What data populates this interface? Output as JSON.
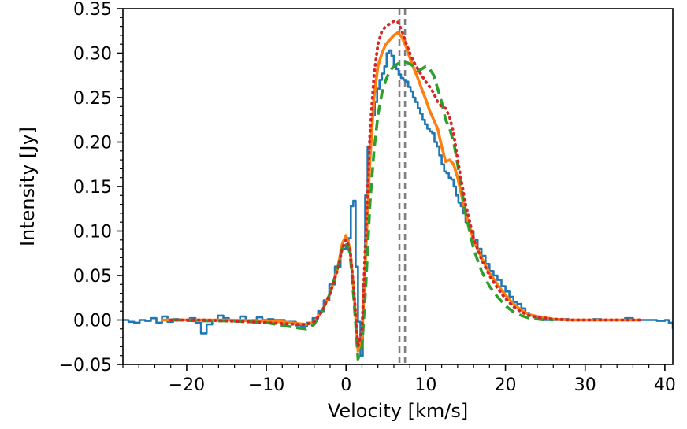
{
  "chart_data": {
    "type": "line",
    "xlabel": "Velocity [km/s]",
    "ylabel": "Intensity [Jy]",
    "xlim": [
      -28,
      41
    ],
    "ylim": [
      -0.05,
      0.35
    ],
    "xticks": [
      -20,
      -10,
      0,
      10,
      20,
      30,
      40
    ],
    "xtick_labels": [
      "−20",
      "−10",
      "0",
      "10",
      "20",
      "30",
      "40"
    ],
    "yticks": [
      -0.05,
      0.0,
      0.05,
      0.1,
      0.15,
      0.2,
      0.25,
      0.3,
      0.35
    ],
    "ytick_labels": [
      "−0.05",
      "0.00",
      "0.05",
      "0.10",
      "0.15",
      "0.20",
      "0.25",
      "0.30",
      "0.35"
    ],
    "grid": false,
    "vlines": [
      {
        "x": 6.7,
        "color": "#7f7f7f",
        "style": "dashed"
      },
      {
        "x": 7.4,
        "color": "#7f7f7f",
        "style": "dashed"
      }
    ],
    "series": [
      {
        "color": "#1f77b4",
        "style": "step",
        "x": [
          -28,
          -27.3,
          -26.6,
          -25.9,
          -25.2,
          -24.5,
          -23.8,
          -23.1,
          -22.4,
          -21.7,
          -21,
          -20.3,
          -19.6,
          -18.9,
          -18.2,
          -17.5,
          -16.8,
          -16.1,
          -15.4,
          -14.7,
          -14,
          -13.3,
          -12.6,
          -11.9,
          -11.2,
          -10.5,
          -9.8,
          -9.1,
          -8.4,
          -7.7,
          -7,
          -6.3,
          -5.6,
          -4.9,
          -4.2,
          -3.5,
          -2.8,
          -2.1,
          -1.4,
          -0.7,
          0,
          0.3,
          0.6,
          0.9,
          1.2,
          1.5,
          1.8,
          2.1,
          2.4,
          2.7,
          3.0,
          3.3,
          3.6,
          3.9,
          4.2,
          4.5,
          4.8,
          5.1,
          5.4,
          5.7,
          6.0,
          6.3,
          6.6,
          6.9,
          7.2,
          7.5,
          7.8,
          8.1,
          8.4,
          8.7,
          9.0,
          9.3,
          9.6,
          9.9,
          10.2,
          10.5,
          10.8,
          11.1,
          11.4,
          11.7,
          12.0,
          12.3,
          12.6,
          12.9,
          13.2,
          13.5,
          13.8,
          14.1,
          14.4,
          14.7,
          15.0,
          15.5,
          16,
          16.5,
          17,
          17.5,
          18,
          18.5,
          19,
          19.5,
          20,
          20.5,
          21,
          21.5,
          22,
          22.5,
          23,
          23.5,
          24,
          25,
          26,
          27,
          28,
          29,
          30,
          31,
          32,
          33,
          34,
          35,
          36,
          37,
          38,
          39,
          40,
          40.5,
          41
        ],
        "y": [
          0.0,
          -0.002,
          -0.003,
          0.0,
          -0.001,
          0.002,
          -0.003,
          0.004,
          -0.002,
          0.001,
          0.0,
          0.0,
          0.002,
          -0.003,
          -0.015,
          -0.005,
          0.0,
          0.005,
          0.002,
          0.0,
          0.0,
          0.004,
          -0.001,
          0.0,
          0.003,
          0.0,
          0.001,
          0.0,
          0.0,
          -0.002,
          -0.002,
          -0.006,
          -0.007,
          -0.003,
          0.002,
          0.01,
          0.022,
          0.04,
          0.06,
          0.08,
          0.085,
          0.092,
          0.128,
          0.134,
          0.06,
          -0.002,
          -0.04,
          0.04,
          0.14,
          0.195,
          0.205,
          0.23,
          0.245,
          0.26,
          0.27,
          0.277,
          0.285,
          0.3,
          0.303,
          0.297,
          0.287,
          0.282,
          0.276,
          0.272,
          0.27,
          0.268,
          0.262,
          0.257,
          0.25,
          0.245,
          0.238,
          0.232,
          0.225,
          0.22,
          0.215,
          0.212,
          0.21,
          0.2,
          0.195,
          0.185,
          0.175,
          0.167,
          0.165,
          0.16,
          0.158,
          0.15,
          0.14,
          0.132,
          0.128,
          0.12,
          0.11,
          0.1,
          0.09,
          0.08,
          0.072,
          0.063,
          0.055,
          0.05,
          0.045,
          0.038,
          0.032,
          0.026,
          0.02,
          0.018,
          0.013,
          0.008,
          0.005,
          0.003,
          0.001,
          0.0,
          0.0,
          0.001,
          0.0,
          0.0,
          0.0,
          0.001,
          0.0,
          0.0,
          0.0,
          0.002,
          0.0,
          0.0,
          0.0,
          -0.001,
          0.0,
          -0.003,
          -0.01
        ]
      },
      {
        "color": "#ff7f0e",
        "style": "solid",
        "x": [
          -23,
          -20,
          -15,
          -10,
          -8,
          -6,
          -5,
          -4,
          -3,
          -2,
          -1,
          -0.5,
          0,
          0.5,
          1,
          1.5,
          2,
          2.5,
          3,
          3.5,
          4,
          4.5,
          5,
          5.5,
          6,
          6.5,
          7,
          7.5,
          8,
          8.5,
          9,
          9.5,
          10,
          10.5,
          11,
          11.5,
          12,
          12.5,
          13,
          13.5,
          14,
          15,
          16,
          17,
          18,
          19,
          20,
          21,
          22,
          23,
          24,
          26,
          28,
          30,
          33,
          37
        ],
        "y": [
          0.0,
          0.0,
          0.0,
          -0.001,
          -0.002,
          -0.004,
          -0.005,
          -0.002,
          0.01,
          0.03,
          0.06,
          0.085,
          0.095,
          0.08,
          0.03,
          -0.035,
          -0.02,
          0.08,
          0.18,
          0.25,
          0.285,
          0.3,
          0.31,
          0.315,
          0.32,
          0.323,
          0.318,
          0.308,
          0.295,
          0.283,
          0.272,
          0.26,
          0.248,
          0.235,
          0.225,
          0.215,
          0.195,
          0.178,
          0.18,
          0.175,
          0.16,
          0.12,
          0.09,
          0.07,
          0.053,
          0.04,
          0.028,
          0.018,
          0.011,
          0.006,
          0.004,
          0.001,
          0.0,
          0.0,
          0.0,
          0.0
        ]
      },
      {
        "color": "#2ca02c",
        "style": "dashed",
        "x": [
          -22,
          -18,
          -15,
          -12,
          -10,
          -8,
          -6,
          -5,
          -4,
          -3,
          -2,
          -1,
          -0.5,
          0,
          0.5,
          1,
          1.5,
          2,
          2.5,
          3,
          3.5,
          4,
          4.5,
          5,
          5.5,
          6,
          6.5,
          7,
          7.5,
          8,
          8.5,
          9,
          9.5,
          10,
          10.5,
          11,
          11.5,
          12,
          12.5,
          13,
          13.5,
          14,
          15,
          16,
          17,
          18,
          19,
          20,
          21,
          22,
          23,
          24,
          25,
          26
        ],
        "y": [
          0.0,
          -0.001,
          -0.001,
          -0.002,
          -0.003,
          -0.006,
          -0.009,
          -0.01,
          -0.005,
          0.01,
          0.03,
          0.06,
          0.08,
          0.088,
          0.075,
          0.02,
          -0.044,
          -0.03,
          0.04,
          0.13,
          0.19,
          0.23,
          0.255,
          0.27,
          0.28,
          0.285,
          0.288,
          0.29,
          0.29,
          0.288,
          0.285,
          0.28,
          0.282,
          0.285,
          0.282,
          0.275,
          0.26,
          0.245,
          0.225,
          0.215,
          0.2,
          0.175,
          0.12,
          0.08,
          0.055,
          0.038,
          0.026,
          0.016,
          0.009,
          0.005,
          0.002,
          0.001,
          0.0,
          0.0
        ]
      },
      {
        "color": "#d62728",
        "style": "dotted",
        "x": [
          -22,
          -18,
          -15,
          -12,
          -10,
          -8,
          -6,
          -5,
          -4,
          -3,
          -2,
          -1,
          -0.5,
          0,
          0.5,
          1,
          1.5,
          2,
          2.5,
          3,
          3.5,
          4,
          4.5,
          5,
          5.5,
          6,
          6.5,
          7,
          7.5,
          8,
          8.5,
          9,
          9.5,
          10,
          10.5,
          11,
          11.5,
          12,
          12.5,
          13,
          13.5,
          14,
          15,
          16,
          17,
          18,
          19,
          20,
          21,
          22,
          23,
          24,
          26,
          28,
          30,
          33,
          37
        ],
        "y": [
          0.0,
          0.0,
          -0.001,
          -0.002,
          -0.003,
          -0.004,
          -0.005,
          -0.005,
          -0.002,
          0.01,
          0.03,
          0.058,
          0.08,
          0.09,
          0.08,
          0.03,
          -0.03,
          -0.01,
          0.1,
          0.21,
          0.275,
          0.31,
          0.325,
          0.33,
          0.333,
          0.336,
          0.335,
          0.325,
          0.312,
          0.3,
          0.29,
          0.282,
          0.275,
          0.268,
          0.262,
          0.255,
          0.245,
          0.24,
          0.238,
          0.228,
          0.21,
          0.18,
          0.13,
          0.092,
          0.068,
          0.05,
          0.036,
          0.024,
          0.015,
          0.009,
          0.005,
          0.003,
          0.001,
          0.0,
          0.0,
          0.0,
          0.0
        ]
      }
    ]
  }
}
